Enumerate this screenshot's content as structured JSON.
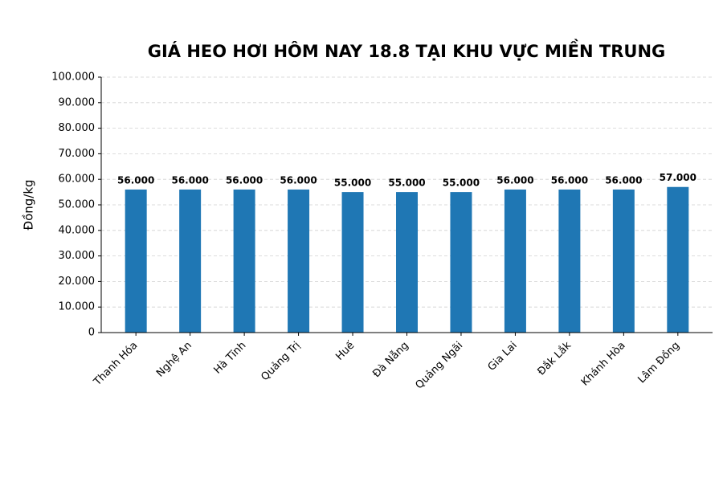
{
  "chart_data": {
    "type": "bar",
    "title": "GIÁ HEO HƠI HÔM NAY 18.8 TẠI KHU VỰC MIỀN TRUNG",
    "y_label": "Đồng/kg",
    "categories": [
      "Thanh Hóa",
      "Nghệ An",
      "Hà Tĩnh",
      "Quảng Trị",
      "Huế",
      "Đà Nẵng",
      "Quảng Ngãi",
      "Gia Lai",
      "Đắk Lắk",
      "Khánh Hòa",
      "Lâm Đồng"
    ],
    "values": [
      56000,
      56000,
      56000,
      56000,
      55000,
      55000,
      55000,
      56000,
      56000,
      56000,
      57000
    ],
    "value_labels": [
      "56.000",
      "56.000",
      "56.000",
      "56.000",
      "55.000",
      "55.000",
      "55.000",
      "56.000",
      "56.000",
      "56.000",
      "57.000"
    ],
    "color": "#1f77b4",
    "ylim": [
      0,
      100000
    ],
    "yticks": [
      0,
      {
        "value": 10000,
        "label": "10.000"
      },
      {
        "value": 20000,
        "label": "20.000"
      },
      {
        "value": 30000,
        "label": "30.000"
      },
      {
        "value": 40000,
        "label": "40.000"
      },
      {
        "value": 50000,
        "label": "50.000"
      },
      {
        "value": 60000,
        "label": "60.000"
      },
      {
        "value": 70000,
        "label": "70.000"
      },
      {
        "value": 80000,
        "label": "80.000"
      },
      {
        "value": 90000,
        "label": "90.000"
      },
      {
        "value": 100000,
        "label": "100.000"
      }
    ],
    "grid": true
  }
}
